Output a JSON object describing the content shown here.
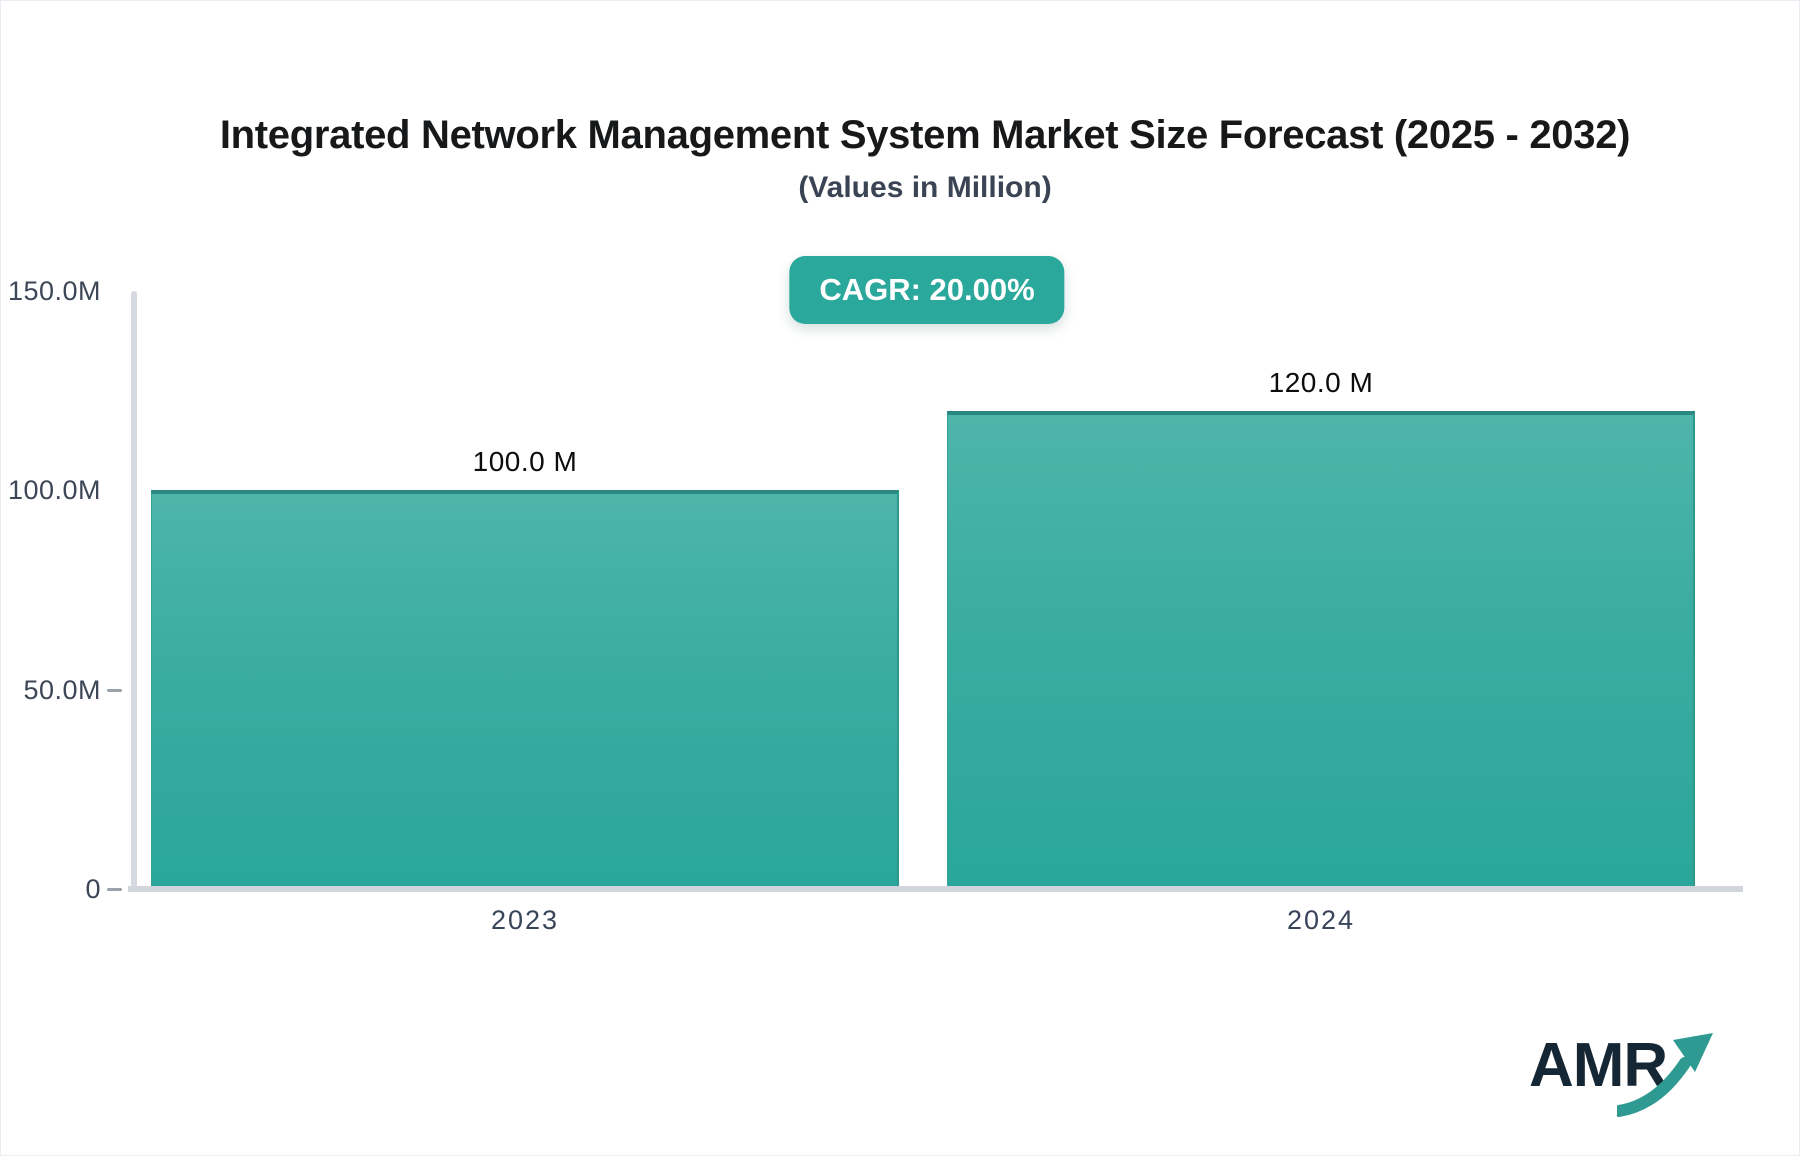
{
  "header": {
    "title": "Integrated Network Management System Market Size Forecast (2025 - 2032)",
    "subtitle": "(Values in Million)"
  },
  "badge": {
    "label": "CAGR: 20.00%",
    "background_color": "#2aa89b",
    "text_color": "#ffffff"
  },
  "chart_data": {
    "type": "bar",
    "title": "Integrated Network Management System Market Size Forecast (2025 - 2032)",
    "subtitle": "(Values in Million)",
    "categories": [
      "2023",
      "2024"
    ],
    "values": [
      100.0,
      120.0
    ],
    "bar_labels": [
      "100.0 M",
      "120.0 M"
    ],
    "unit": "Million",
    "ylim": [
      0,
      150
    ],
    "yticks": [
      {
        "value": 150,
        "label": "150.0M",
        "dash": false
      },
      {
        "value": 100,
        "label": "100.0M",
        "dash": false
      },
      {
        "value": 50,
        "label": "50.0M",
        "dash": true
      },
      {
        "value": 0,
        "label": "0",
        "dash": true
      }
    ],
    "grid": false,
    "legend": false,
    "bar_color_top": "#4eb5ab",
    "bar_color_bottom": "#2aa79a",
    "bar_border_color": "#29887f",
    "axis_color": "#d5d8df",
    "tick_text_color": "#3d4757"
  },
  "logo": {
    "text": "AMR",
    "arrow_icon": "trend-up-arrow-icon",
    "text_color": "#152634",
    "arrow_color": "#2f9a91"
  }
}
